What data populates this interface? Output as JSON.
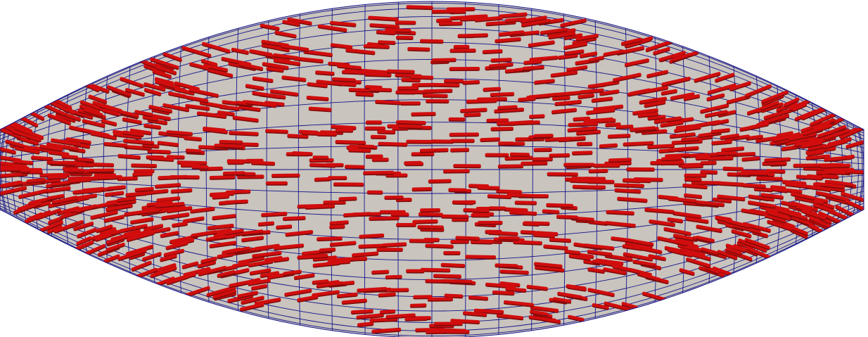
{
  "scene": {
    "description_free": true,
    "mesh": {
      "fill_color": "#c9c4bd",
      "grid_line_color": "#15158a",
      "columns": 40,
      "rows": 22
    },
    "fibers": {
      "color": "#d10d0d",
      "shadow_color": "#7a0a0a",
      "count": 1100,
      "orientation": "mostly-horizontal"
    }
  }
}
